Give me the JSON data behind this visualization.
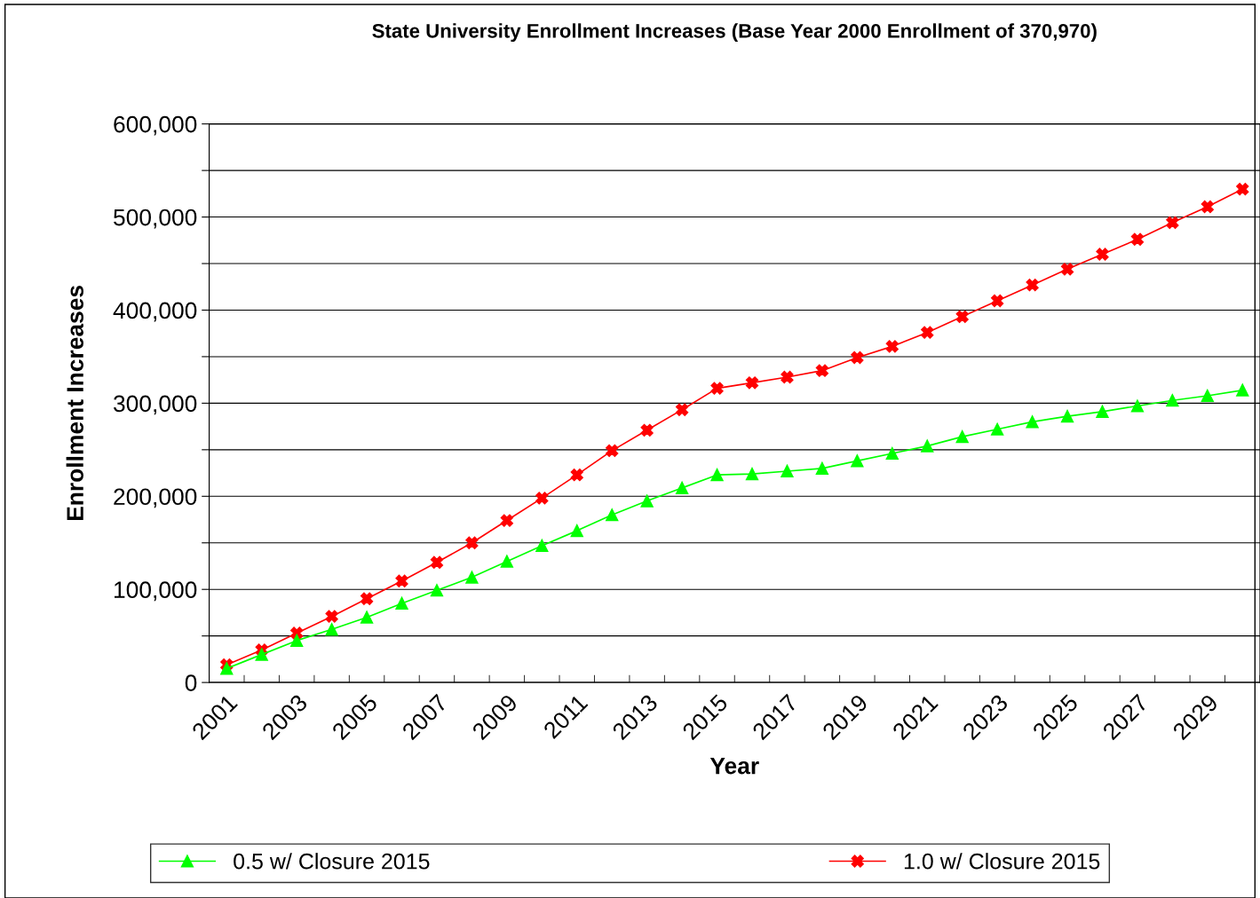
{
  "chart_data": {
    "type": "line",
    "title": "State University Enrollment Increases (Base Year 2000 Enrollment of 370,970)",
    "xlabel": "Year",
    "ylabel": "Enrollment Increases",
    "categories": [
      "2001",
      null,
      "2003",
      null,
      "2005",
      null,
      "2007",
      null,
      "2009",
      null,
      "2011",
      null,
      "2013",
      null,
      "2015",
      null,
      "2017",
      null,
      "2019",
      null,
      "2021",
      null,
      "2023",
      null,
      "2025",
      null,
      "2027",
      null,
      "2029",
      null
    ],
    "series": [
      {
        "name": "0.5 w/ Closure 2015",
        "color": "#00ff00",
        "marker": "triangle",
        "values": [
          15000,
          30000,
          45000,
          57000,
          70000,
          85000,
          99000,
          113000,
          130000,
          147000,
          163000,
          180000,
          195000,
          209000,
          223000,
          224000,
          227000,
          230000,
          238000,
          246000,
          254000,
          264000,
          272000,
          280000,
          286000,
          291000,
          297000,
          303000,
          308000,
          314000
        ]
      },
      {
        "name": "1.0 w/ Closure 2015",
        "color": "#ff0000",
        "marker": "cross",
        "values": [
          19000,
          35000,
          53000,
          71000,
          90000,
          109000,
          129000,
          150000,
          174000,
          198000,
          223000,
          249000,
          271000,
          293000,
          316000,
          322000,
          328000,
          335000,
          349000,
          361000,
          376000,
          393000,
          410000,
          427000,
          444000,
          460000,
          476000,
          494000,
          511000,
          530000
        ]
      }
    ],
    "ylim": [
      0,
      600000
    ],
    "yticks": [
      0,
      {
        "value": 50000,
        "label": null
      },
      {
        "value": 100000,
        "label": "100,000"
      },
      {
        "value": 150000,
        "label": null
      },
      {
        "value": 200000,
        "label": "200,000"
      },
      {
        "value": 250000,
        "label": null
      },
      {
        "value": 300000,
        "label": "300,000"
      },
      {
        "value": 350000,
        "label": null
      },
      {
        "value": 400000,
        "label": "400,000"
      },
      {
        "value": 450000,
        "label": null
      },
      {
        "value": 500000,
        "label": "500,000"
      },
      {
        "value": 550000,
        "label": null
      },
      {
        "value": 600000,
        "label": "600,000"
      }
    ],
    "grid": "y",
    "legend": "bottom",
    "line_style": "solid"
  }
}
